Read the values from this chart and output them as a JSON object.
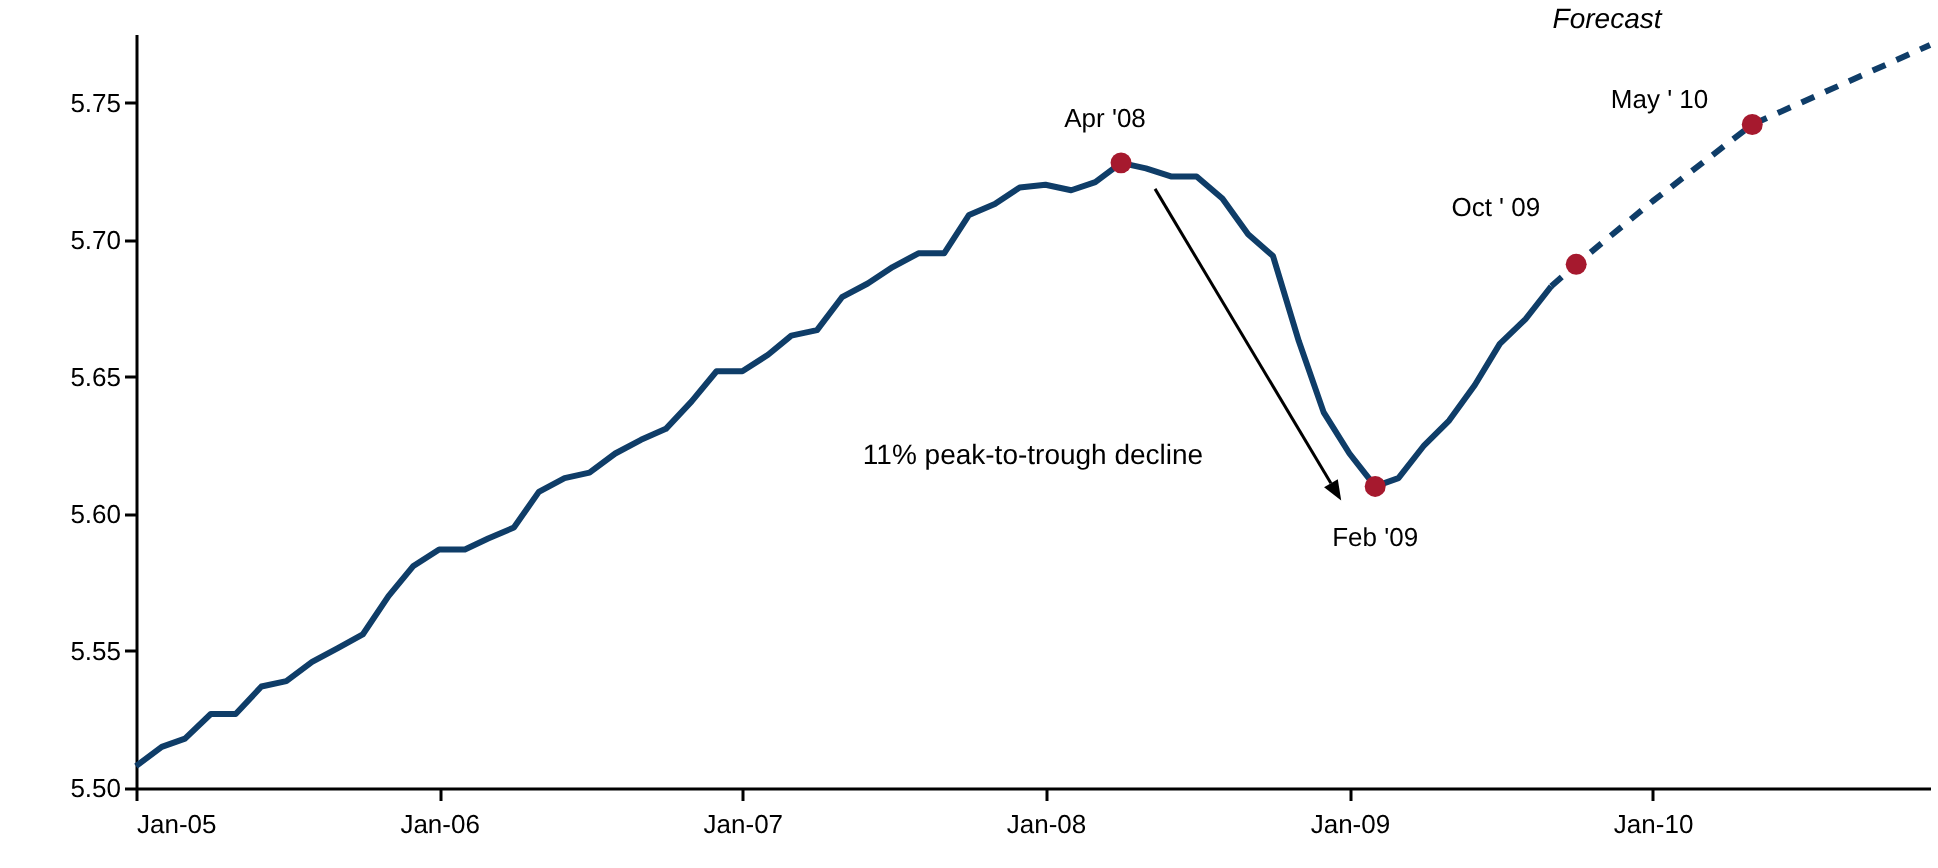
{
  "chart_data": {
    "type": "line",
    "annotations": [
      {
        "text": "Apr '08",
        "x": "2008-04",
        "y": 5.728
      },
      {
        "text": "Feb '09",
        "x": "2009-02",
        "y": 5.61
      },
      {
        "text": "Oct ' 09",
        "x": "2009-10",
        "y": 5.691
      },
      {
        "text": "May ' 10",
        "x": "2010-05",
        "y": 5.742
      },
      "11% peak-to-trough decline",
      "Forecast"
    ],
    "series": [
      {
        "color": "#0f3d68",
        "line_style": "solid",
        "marker": "none",
        "x": [
          "2005-01",
          "2005-02",
          "2005-03",
          "2005-04",
          "2005-05",
          "2005-06",
          "2005-07",
          "2005-08",
          "2005-09",
          "2005-10",
          "2005-11",
          "2005-12",
          "2006-01",
          "2006-02",
          "2006-03",
          "2006-04",
          "2006-05",
          "2006-06",
          "2006-07",
          "2006-08",
          "2006-09",
          "2006-10",
          "2006-11",
          "2006-12",
          "2007-01",
          "2007-02",
          "2007-03",
          "2007-04",
          "2007-05",
          "2007-06",
          "2007-07",
          "2007-08",
          "2007-09",
          "2007-10",
          "2007-11",
          "2007-12",
          "2008-01",
          "2008-02",
          "2008-03",
          "2008-04",
          "2008-05",
          "2008-06",
          "2008-07",
          "2008-08",
          "2008-09",
          "2008-10",
          "2008-11",
          "2008-12",
          "2009-01",
          "2009-02",
          "2009-03",
          "2009-04",
          "2009-05",
          "2009-06",
          "2009-07",
          "2009-08",
          "2009-09"
        ],
        "values": [
          5.508,
          5.515,
          5.518,
          5.527,
          5.527,
          5.537,
          5.539,
          5.546,
          5.551,
          5.556,
          5.57,
          5.581,
          5.587,
          5.587,
          5.591,
          5.595,
          5.608,
          5.613,
          5.615,
          5.622,
          5.627,
          5.631,
          5.641,
          5.652,
          5.652,
          5.658,
          5.665,
          5.667,
          5.679,
          5.684,
          5.69,
          5.695,
          5.695,
          5.709,
          5.713,
          5.719,
          5.72,
          5.718,
          5.721,
          5.728,
          5.726,
          5.723,
          5.723,
          5.715,
          5.702,
          5.694,
          5.663,
          5.637,
          5.622,
          5.61,
          5.613,
          5.625,
          5.634,
          5.647,
          5.662,
          5.671,
          5.683
        ]
      },
      {
        "color": "#0f3d68",
        "line_style": "dashed",
        "marker": "none",
        "x": [
          "2009-09",
          "2009-10",
          "2010-01",
          "2010-05",
          "2010-12"
        ],
        "values": [
          5.683,
          5.691,
          5.714,
          5.742,
          5.771
        ]
      },
      {
        "type": "scatter",
        "color": "#a6192e",
        "marker": "circle",
        "x": [
          "2008-04",
          "2009-02",
          "2009-10",
          "2010-05"
        ],
        "values": [
          5.728,
          5.61,
          5.691,
          5.742
        ]
      }
    ],
    "xlim": [
      "2005-01",
      "2010-12"
    ],
    "xticks": [
      {
        "value": "2005-01",
        "label": "Jan-05"
      },
      {
        "value": "2006-01",
        "label": "Jan-06"
      },
      {
        "value": "2007-01",
        "label": "Jan-07"
      },
      {
        "value": "2008-01",
        "label": "Jan-08"
      },
      {
        "value": "2009-01",
        "label": "Jan-09"
      },
      {
        "value": "2010-01",
        "label": "Jan-10"
      }
    ],
    "ylim": [
      5.5,
      5.775
    ],
    "yticks": [
      {
        "value": 5.5,
        "label": "5.50"
      },
      {
        "value": 5.55,
        "label": "5.55"
      },
      {
        "value": 5.6,
        "label": "5.60"
      },
      {
        "value": 5.65,
        "label": "5.65"
      },
      {
        "value": 5.7,
        "label": "5.70"
      },
      {
        "value": 5.75,
        "label": "5.75"
      }
    ],
    "grid": false
  }
}
